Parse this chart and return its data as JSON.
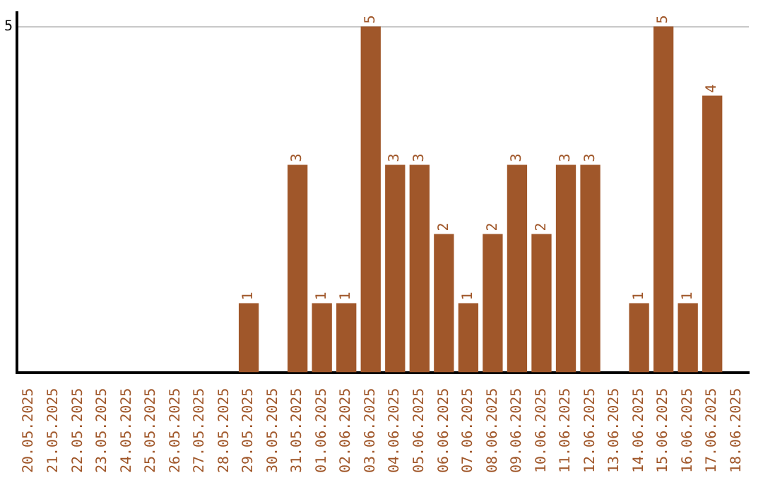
{
  "chart_data": {
    "type": "bar",
    "categories": [
      "20.05.2025",
      "21.05.2025",
      "22.05.2025",
      "23.05.2025",
      "24.05.2025",
      "25.05.2025",
      "26.05.2025",
      "27.05.2025",
      "28.05.2025",
      "29.05.2025",
      "30.05.2025",
      "31.05.2025",
      "01.06.2025",
      "02.06.2025",
      "03.06.2025",
      "04.06.2025",
      "05.06.2025",
      "06.06.2025",
      "07.06.2025",
      "08.06.2025",
      "09.06.2025",
      "10.06.2025",
      "11.06.2025",
      "12.06.2025",
      "13.06.2025",
      "14.06.2025",
      "15.06.2025",
      "16.06.2025",
      "17.06.2025",
      "18.06.2025"
    ],
    "values": [
      0,
      0,
      0,
      0,
      0,
      0,
      0,
      0,
      0,
      1,
      0,
      3,
      1,
      1,
      5,
      3,
      3,
      2,
      1,
      2,
      3,
      2,
      3,
      3,
      0,
      1,
      5,
      1,
      4,
      0
    ],
    "value_labels": [
      null,
      null,
      null,
      null,
      null,
      null,
      null,
      null,
      null,
      "1",
      null,
      "3",
      "1",
      "1",
      "5",
      "3",
      "3",
      "2",
      "1",
      "2",
      "3",
      "2",
      "3",
      "3",
      null,
      "1",
      "5",
      "1",
      "4",
      null
    ],
    "color": "#a0572a",
    "ylim": [
      0,
      5.2
    ],
    "yticks": [
      5
    ],
    "grid": "y",
    "legend": false
  }
}
